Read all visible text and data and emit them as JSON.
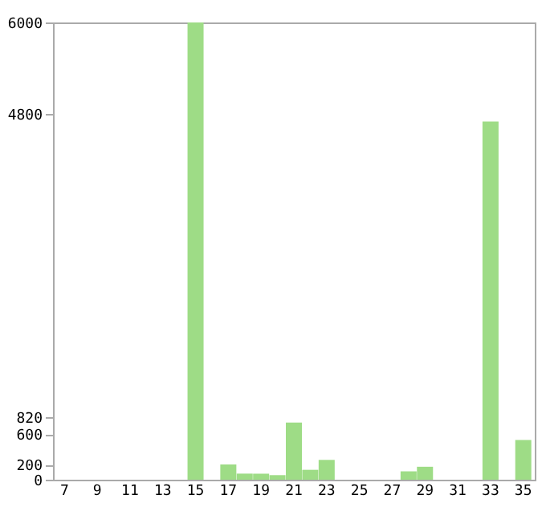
{
  "chart_data": {
    "type": "bar",
    "categories": [
      "7",
      null,
      "9",
      null,
      "11",
      null,
      "13",
      null,
      "15",
      null,
      "17",
      null,
      "19",
      null,
      "21",
      null,
      "23",
      null,
      "25",
      null,
      "27",
      null,
      "29",
      null,
      "31",
      null,
      "33",
      null,
      "35"
    ],
    "values": [
      0,
      0,
      0,
      0,
      0,
      0,
      0,
      0,
      6000,
      0,
      200,
      80,
      80,
      60,
      750,
      130,
      260,
      0,
      0,
      0,
      0,
      110,
      170,
      0,
      0,
      0,
      4700,
      0,
      520
    ],
    "color": "#9edc86",
    "ylim": [
      0,
      6000
    ],
    "yticks": [
      0,
      200,
      600,
      820,
      4800,
      6000
    ],
    "grid": false
  }
}
